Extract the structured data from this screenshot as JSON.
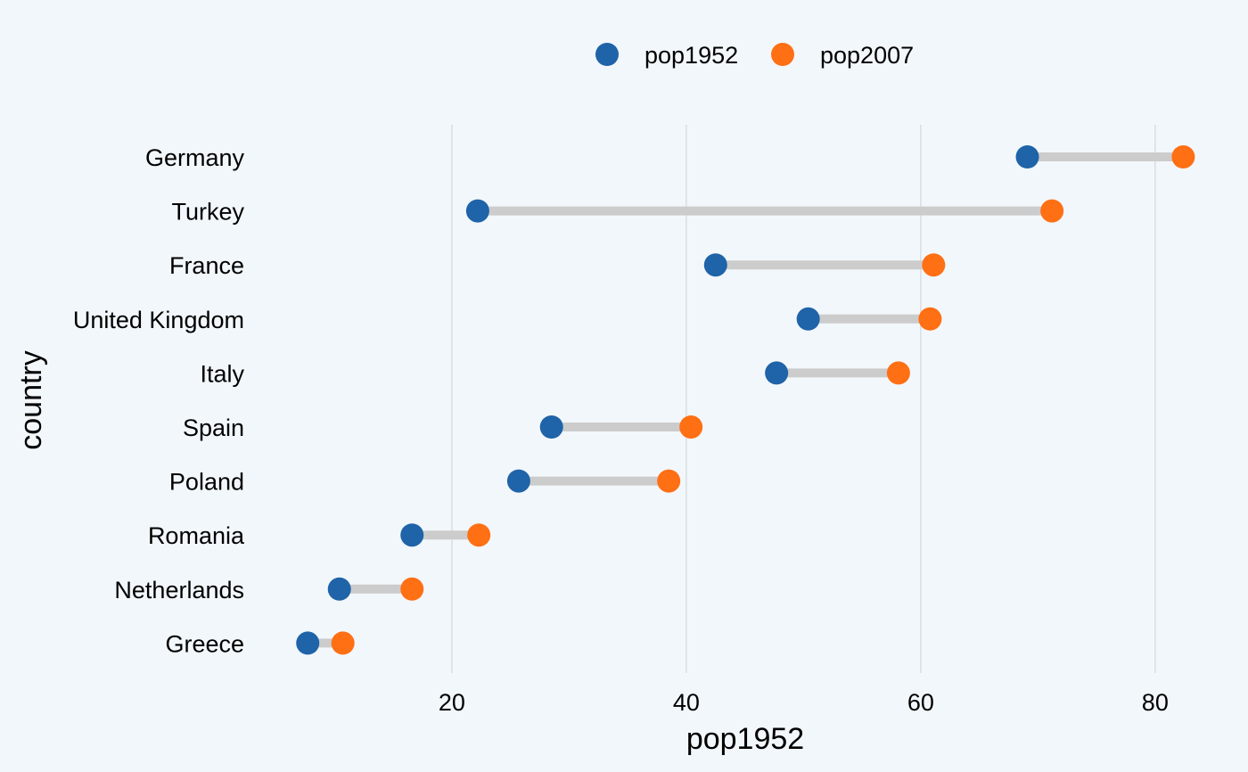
{
  "chart_data": {
    "type": "dumbbell",
    "title": "",
    "xlabel": "pop1952",
    "ylabel": "country",
    "xlim": [
      3.5,
      84.5
    ],
    "xticks": [
      20,
      40,
      60,
      80
    ],
    "grid": "vertical major gridlines",
    "legend_position": "top",
    "categories": [
      "Germany",
      "Turkey",
      "France",
      "United Kingdom",
      "Italy",
      "Spain",
      "Poland",
      "Romania",
      "Netherlands",
      "Greece"
    ],
    "series": [
      {
        "name": "pop1952",
        "color": "#1f63a8",
        "values": [
          69.1,
          22.2,
          42.5,
          50.4,
          47.7,
          28.5,
          25.7,
          16.6,
          10.4,
          7.7
        ]
      },
      {
        "name": "pop2007",
        "color": "#ff6f14",
        "values": [
          82.4,
          71.2,
          61.1,
          60.8,
          58.1,
          40.4,
          38.5,
          22.3,
          16.6,
          10.7
        ]
      }
    ],
    "connector_color": "#cccccc"
  }
}
